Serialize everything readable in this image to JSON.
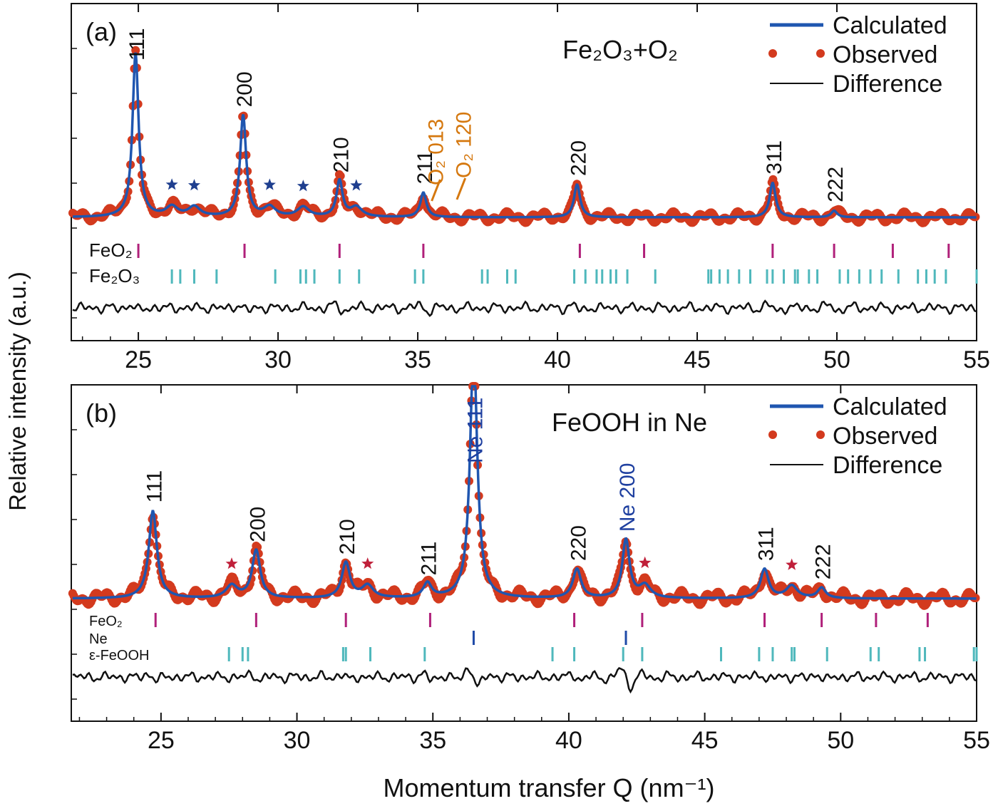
{
  "ylabel": "Relative intensity (a.u.)",
  "xlabel": "Momentum transfer Q (nm⁻¹)",
  "colors": {
    "calculated": "#1f56b0",
    "observed": "#d33a1e",
    "difference": "#111111",
    "feo2_tick": "#b0207a",
    "secondary_tick": "#4fb8bc",
    "ne_tick": "#1f4aa8",
    "star_a": "#1f3f8f",
    "star_b": "#c0203a",
    "o2_label": "#d5780f",
    "ne_label": "#1f40a0"
  },
  "chart_data": [
    {
      "type": "line",
      "panel_label": "(a)",
      "title": "Fe₂O₃+O₂",
      "xlim": [
        22,
        55
      ],
      "xticks": [
        25,
        30,
        35,
        40,
        45,
        50,
        55
      ],
      "legend": [
        "Calculated",
        "Observed",
        "Difference"
      ],
      "legend_position": "top-right",
      "peaks": [
        {
          "label": "111",
          "q": 24.9,
          "h": 1.0
        },
        {
          "label": "200",
          "q": 28.75,
          "h": 0.62
        },
        {
          "label": "210",
          "q": 32.2,
          "h": 0.22
        },
        {
          "label": "211",
          "q": 35.2,
          "h": 0.15
        },
        {
          "label": "220",
          "q": 40.7,
          "h": 0.2
        },
        {
          "label": "311",
          "q": 47.7,
          "h": 0.21
        },
        {
          "label": "222",
          "q": 49.9,
          "h": 0.04
        }
      ],
      "o2_labels": [
        "O₂ 013",
        "O₂ 120"
      ],
      "stars": [
        26.2,
        27.0,
        29.7,
        30.9,
        32.8
      ],
      "tick_rows": [
        {
          "name": "FeO₂",
          "positions": [
            25.0,
            28.8,
            32.2,
            35.2,
            40.8,
            43.1,
            47.7,
            49.9,
            52.0,
            54.0
          ]
        },
        {
          "name": "Fe₂O₃",
          "positions": [
            26.2,
            26.5,
            27.0,
            27.8,
            29.9,
            30.8,
            31.0,
            31.3,
            32.2,
            32.9,
            34.9,
            35.2,
            37.3,
            37.5,
            38.2,
            38.5,
            40.6,
            41.0,
            41.4,
            41.6,
            41.9,
            42.1,
            42.5,
            43.5,
            45.4,
            45.5,
            45.8,
            46.1,
            46.5,
            46.9,
            47.5,
            47.7,
            48.1,
            48.5,
            48.6,
            49.0,
            49.3,
            50.1,
            50.4,
            50.8,
            51.2,
            51.6,
            52.2,
            52.9,
            53.2,
            53.5,
            53.9,
            55.0
          ]
        }
      ]
    },
    {
      "type": "line",
      "panel_label": "(b)",
      "title": "FeOOH in Ne",
      "xlim": [
        22,
        55
      ],
      "xticks": [
        25,
        30,
        35,
        40,
        45,
        50,
        55
      ],
      "legend": [
        "Calculated",
        "Observed",
        "Difference"
      ],
      "legend_position": "top-right",
      "peaks": [
        {
          "label": "111",
          "q": 24.7,
          "h": 0.42
        },
        {
          "label": "200",
          "q": 28.5,
          "h": 0.23
        },
        {
          "label": "210",
          "q": 31.8,
          "h": 0.17
        },
        {
          "label": "211",
          "q": 34.8,
          "h": 0.07
        },
        {
          "label": "220",
          "q": 40.3,
          "h": 0.14
        },
        {
          "label": "311",
          "q": 47.2,
          "h": 0.14
        },
        {
          "label": "222",
          "q": 49.3,
          "h": 0.05
        }
      ],
      "ne_peaks": [
        {
          "label": "Ne 111",
          "q": 36.5,
          "h": 1.2
        },
        {
          "label": "Ne 200",
          "q": 42.1,
          "h": 0.28
        }
      ],
      "stars": [
        27.6,
        32.6,
        42.8,
        48.2
      ],
      "tick_rows": [
        {
          "name": "FeO₂",
          "positions": [
            24.8,
            28.5,
            31.8,
            34.9,
            40.2,
            42.7,
            47.2,
            49.3,
            51.3,
            53.2
          ]
        },
        {
          "name": "Ne",
          "positions": [
            36.5,
            42.1
          ]
        },
        {
          "name": "ε-FeOOH",
          "positions": [
            27.5,
            28.0,
            28.2,
            31.7,
            31.8,
            32.7,
            34.7,
            39.4,
            40.2,
            42.0,
            42.7,
            45.6,
            47.0,
            47.5,
            48.2,
            48.3,
            49.5,
            51.1,
            51.4,
            52.9,
            53.1,
            54.9,
            55.0
          ]
        }
      ]
    }
  ]
}
